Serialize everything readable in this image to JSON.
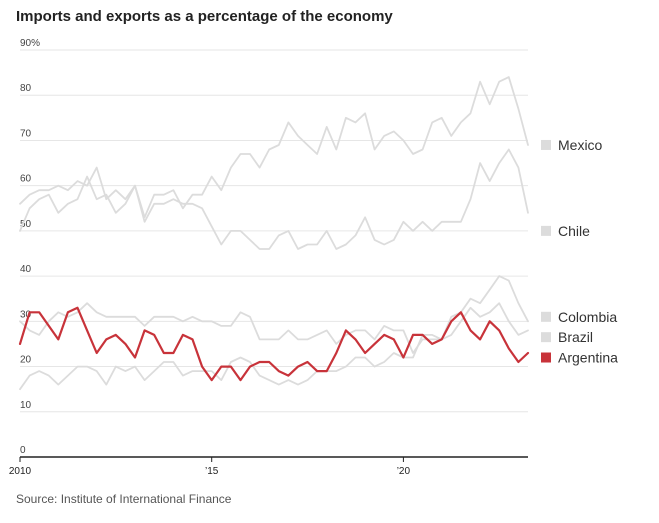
{
  "title": "Imports and exports as a percentage of the economy",
  "source": "Source: Institute of International Finance",
  "colors": {
    "highlight": "#c8333a",
    "muted": "#dcdcdc",
    "grid": "#e6e6e6",
    "axis": "#222222"
  },
  "chart_data": {
    "type": "line",
    "title": "Imports and exports as a percentage of the economy",
    "xlabel": "",
    "ylabel": "",
    "xlim": [
      2010,
      2023.25
    ],
    "ylim": [
      0,
      90
    ],
    "y_ticks": [
      {
        "value": 0,
        "label": "0"
      },
      {
        "value": 10,
        "label": "10"
      },
      {
        "value": 20,
        "label": "20"
      },
      {
        "value": 30,
        "label": "30"
      },
      {
        "value": 40,
        "label": "40"
      },
      {
        "value": 50,
        "label": "50"
      },
      {
        "value": 60,
        "label": "60"
      },
      {
        "value": 70,
        "label": "70"
      },
      {
        "value": 80,
        "label": "80"
      },
      {
        "value": 90,
        "label": "90%"
      }
    ],
    "x_ticks": [
      {
        "value": 2010,
        "label": "2010"
      },
      {
        "value": 2015,
        "label": "’15"
      },
      {
        "value": 2020,
        "label": "’20"
      }
    ],
    "grid": true,
    "legend": "right",
    "x": [
      2010.0,
      2010.25,
      2010.5,
      2010.75,
      2011.0,
      2011.25,
      2011.5,
      2011.75,
      2012.0,
      2012.25,
      2012.5,
      2012.75,
      2013.0,
      2013.25,
      2013.5,
      2013.75,
      2014.0,
      2014.25,
      2014.5,
      2014.75,
      2015.0,
      2015.25,
      2015.5,
      2015.75,
      2016.0,
      2016.25,
      2016.5,
      2016.75,
      2017.0,
      2017.25,
      2017.5,
      2017.75,
      2018.0,
      2018.25,
      2018.5,
      2018.75,
      2019.0,
      2019.25,
      2019.5,
      2019.75,
      2020.0,
      2020.25,
      2020.5,
      2020.75,
      2021.0,
      2021.25,
      2021.5,
      2021.75,
      2022.0,
      2022.25,
      2022.5,
      2022.75,
      2023.0,
      2023.25
    ],
    "series": [
      {
        "name": "Mexico",
        "highlight": false,
        "values": [
          56,
          58,
          59,
          59,
          60,
          59,
          61,
          60,
          64,
          57,
          59,
          57,
          60,
          53,
          58,
          58,
          59,
          55,
          58,
          58,
          62,
          59,
          64,
          67,
          67,
          64,
          68,
          69,
          74,
          71,
          69,
          67,
          73,
          68,
          75,
          74,
          76,
          68,
          71,
          72,
          70,
          67,
          68,
          74,
          75,
          71,
          74,
          76,
          83,
          78,
          83,
          84,
          77,
          69
        ]
      },
      {
        "name": "Chile",
        "highlight": false,
        "values": [
          50,
          55,
          57,
          58,
          54,
          56,
          57,
          62,
          57,
          58,
          54,
          56,
          60,
          52,
          56,
          56,
          57,
          56,
          56,
          55,
          51,
          47,
          50,
          50,
          48,
          46,
          46,
          49,
          50,
          46,
          47,
          47,
          50,
          46,
          47,
          49,
          53,
          48,
          47,
          48,
          52,
          50,
          52,
          50,
          52,
          52,
          52,
          57,
          65,
          61,
          65,
          68,
          64,
          54
        ]
      },
      {
        "name": "Colombia",
        "highlight": false,
        "values": [
          30,
          28,
          27,
          30,
          32,
          31,
          32,
          34,
          32,
          31,
          31,
          31,
          31,
          29,
          31,
          31,
          31,
          30,
          31,
          30,
          30,
          29,
          29,
          32,
          31,
          26,
          26,
          26,
          28,
          26,
          26,
          27,
          28,
          25,
          27,
          28,
          28,
          26,
          29,
          28,
          28,
          23,
          26,
          26,
          26,
          31,
          32,
          35,
          34,
          37,
          40,
          39,
          34,
          30
        ]
      },
      {
        "name": "Brazil",
        "highlight": false,
        "values": [
          15,
          18,
          19,
          18,
          16,
          18,
          20,
          20,
          19,
          16,
          20,
          19,
          20,
          17,
          19,
          21,
          21,
          18,
          19,
          19,
          19,
          17,
          21,
          22,
          21,
          18,
          17,
          16,
          17,
          16,
          17,
          19,
          19,
          19,
          20,
          22,
          22,
          20,
          21,
          23,
          22,
          22,
          27,
          27,
          26,
          27,
          30,
          33,
          31,
          32,
          34,
          30,
          27,
          28
        ]
      },
      {
        "name": "Argentina",
        "highlight": true,
        "values": [
          25,
          32,
          32,
          29,
          26,
          32,
          33,
          28,
          23,
          26,
          27,
          25,
          22,
          28,
          27,
          23,
          23,
          27,
          26,
          20,
          17,
          20,
          20,
          17,
          20,
          21,
          21,
          19,
          18,
          20,
          21,
          19,
          19,
          23,
          28,
          26,
          23,
          25,
          27,
          26,
          22,
          27,
          27,
          25,
          26,
          30,
          32,
          28,
          26,
          30,
          28,
          24,
          21,
          23
        ]
      }
    ],
    "legend_entries": [
      {
        "name": "Mexico",
        "value": 69
      },
      {
        "name": "Chile",
        "value": 50
      },
      {
        "name": "Colombia",
        "value": 31
      },
      {
        "name": "Brazil",
        "value": 26.5
      },
      {
        "name": "Argentina",
        "value": 22
      }
    ]
  }
}
